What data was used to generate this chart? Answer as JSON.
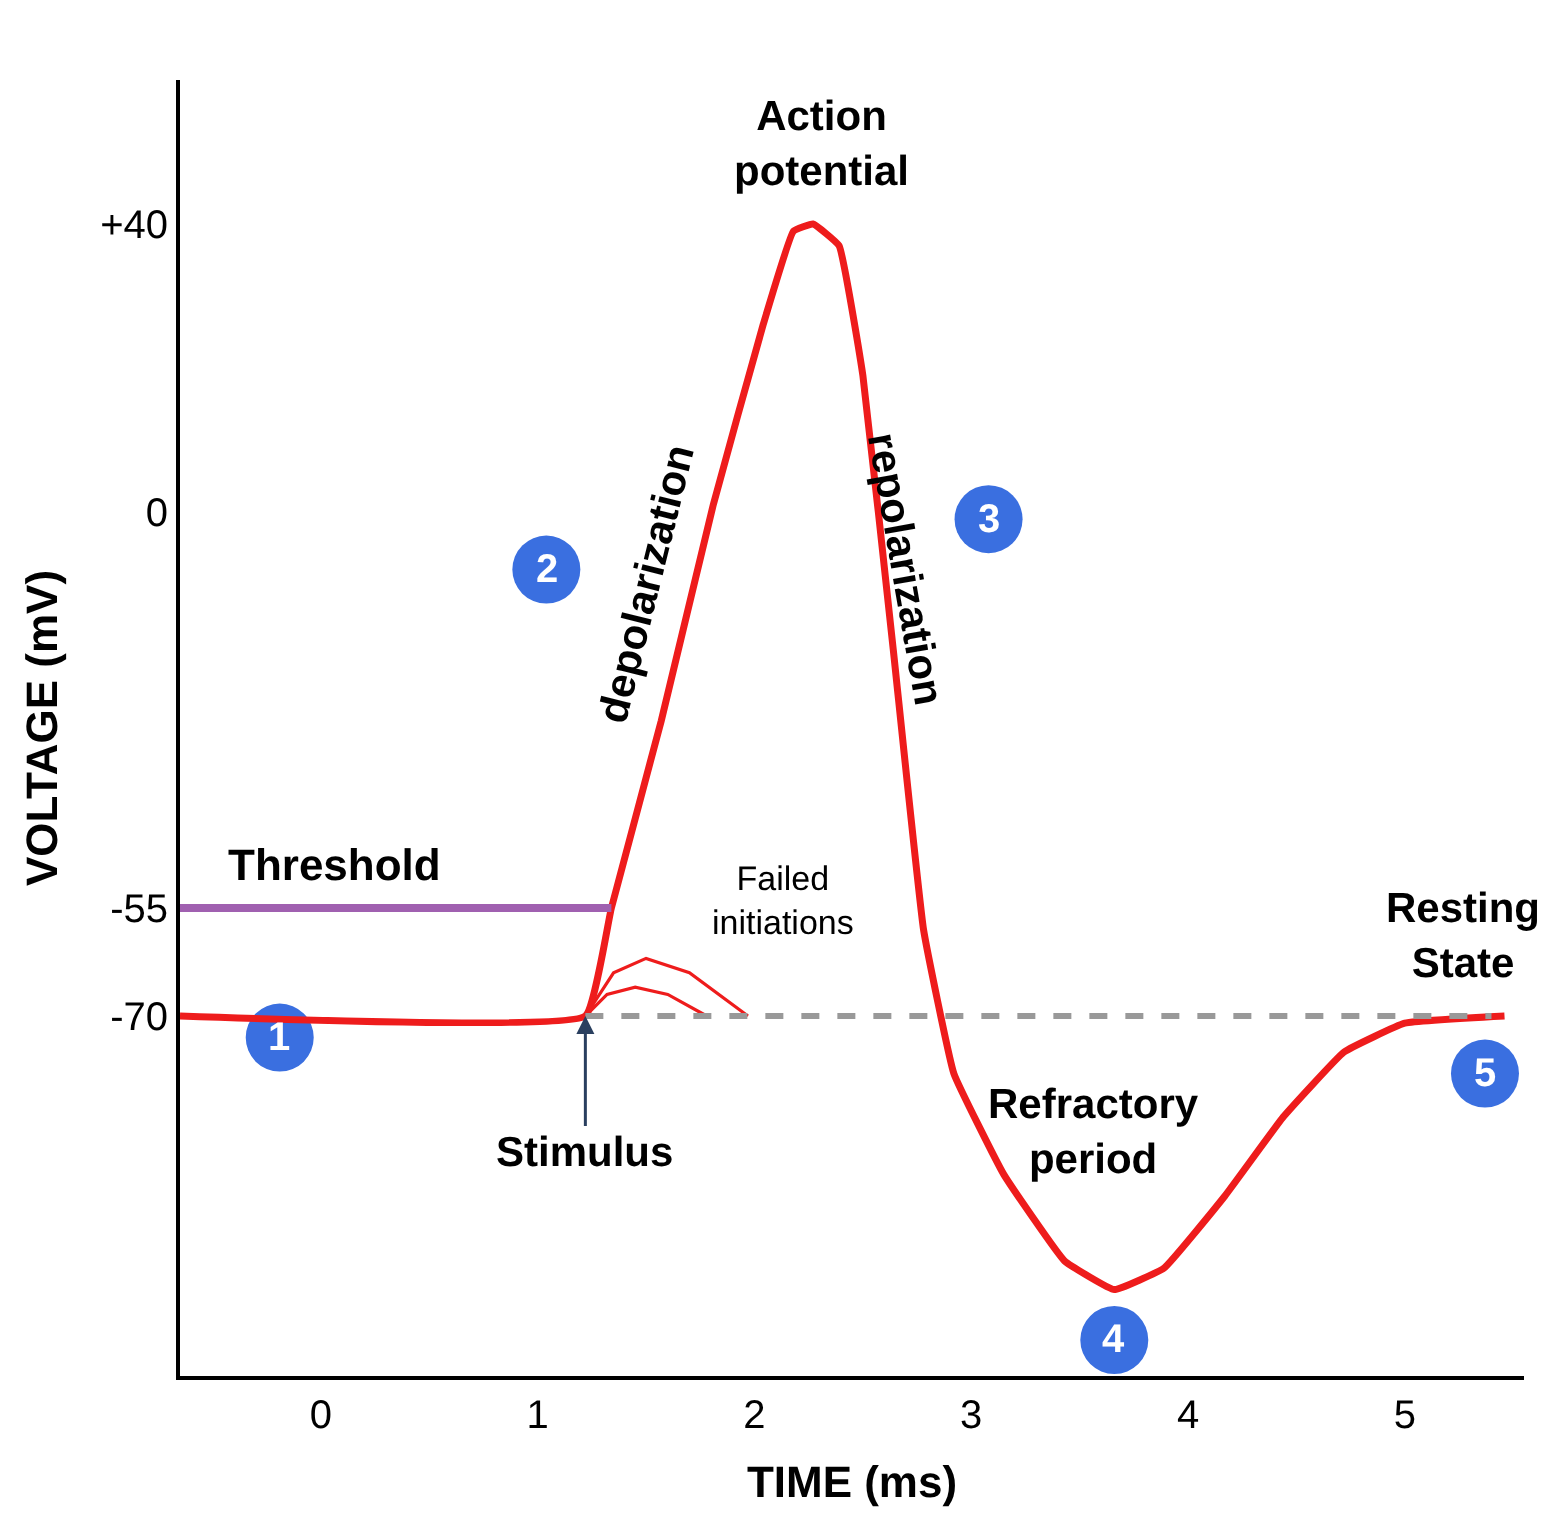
{
  "chart_data": {
    "type": "line",
    "xlabel": "TIME (ms)",
    "ylabel": "VOLTAGE (mV)",
    "xlim": [
      -0.65,
      5.55
    ],
    "ylim": [
      -120,
      60
    ],
    "xticks": [
      0,
      1,
      2,
      3,
      4,
      5
    ],
    "yticks": [
      {
        "value": 40,
        "label": "+40"
      },
      0,
      -55,
      -70
    ],
    "grid": false,
    "marker": "none",
    "series": [
      {
        "color": "#ee1c1c",
        "line_style": "solid",
        "x": [
          -0.65,
          1.22,
          1.34,
          1.57,
          1.81,
          2.04,
          2.18,
          2.27,
          2.39,
          2.5,
          2.64,
          2.78,
          2.92,
          3.15,
          3.43,
          3.66,
          3.89,
          4.17,
          4.44,
          4.72,
          5.0,
          5.46
        ],
        "values": [
          -70,
          -70,
          -55,
          -29,
          1,
          26,
          39,
          40,
          37,
          19,
          -19,
          -58,
          -78,
          -92,
          -104,
          -108,
          -105,
          -95,
          -84,
          -75,
          -71,
          -70
        ]
      },
      {
        "color": "#ee1c1c",
        "line_style": "solid",
        "x": [
          1.22,
          1.35,
          1.5,
          1.7,
          1.97,
          null,
          1.22,
          1.32,
          1.45,
          1.6,
          1.78
        ],
        "values": [
          -70,
          -64,
          -62,
          -64,
          -70,
          null,
          -70,
          -67,
          -66,
          -67,
          -70
        ]
      },
      {
        "color": "#a060b0",
        "line_style": "solid",
        "x": [
          -0.65,
          1.34
        ],
        "values": [
          -55,
          -55
        ]
      },
      {
        "color": "#999999",
        "line_style": "dashed",
        "x": [
          1.22,
          5.4
        ],
        "values": [
          -70,
          -70
        ]
      }
    ],
    "annotations": [
      "Action\npotential",
      "depolarization",
      "repolarization",
      "Threshold",
      "Failed\ninitiations",
      "Resting\nState",
      "Refractory\nperiod",
      {
        "text": "Stimulus",
        "x": 1.22,
        "y": -70
      },
      "1",
      "2",
      "3",
      "4",
      "5"
    ]
  }
}
